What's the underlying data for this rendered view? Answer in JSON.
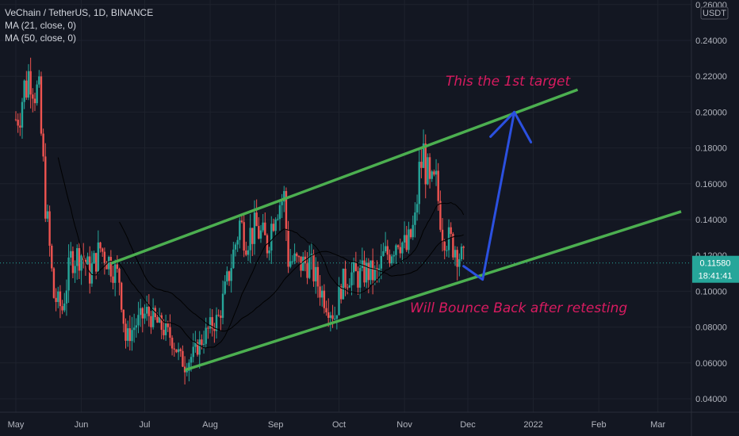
{
  "legend": {
    "symbol_line": "VeChain / TetherUS, 1D, BINANCE",
    "ma21": "MA (21, close, 0)",
    "ma50": "MA (50, close, 0)"
  },
  "price_scale": {
    "currency_badge": "USDT",
    "current_price": "0.11580",
    "countdown": "18:41:41"
  },
  "annotations": {
    "target_text": "This the 1st target",
    "bounce_text": "Will Bounce Back after retesting"
  },
  "colors": {
    "background": "#131722",
    "up": "#26a69a",
    "down": "#ef5350",
    "channel": "#4caf50",
    "arrow": "#2b50e0",
    "annotation": "#d81b60",
    "ma": "#000000",
    "price_badge": "#26a69a"
  },
  "chart_data": {
    "type": "candlestick",
    "title": "VeChain / TetherUS, 1D, BINANCE",
    "y_ticks": [
      "0.04000",
      "0.06000",
      "0.08000",
      "0.10000",
      "0.12000",
      "0.14000",
      "0.16000",
      "0.18000",
      "0.20000",
      "0.22000",
      "0.24000",
      "0.26000"
    ],
    "x_ticks": [
      "May",
      "Jun",
      "Jul",
      "Aug",
      "Sep",
      "Oct",
      "Nov",
      "Dec",
      "2022",
      "Feb",
      "Mar"
    ],
    "ylim": [
      0.035,
      0.26
    ],
    "closes": [
      {
        "date": "May 1",
        "v": 0.196
      },
      {
        "date": "May 8",
        "v": 0.225
      },
      {
        "date": "May 12",
        "v": 0.205
      },
      {
        "date": "May 15",
        "v": 0.15
      },
      {
        "date": "May 19",
        "v": 0.097
      },
      {
        "date": "May 23",
        "v": 0.09
      },
      {
        "date": "May 27",
        "v": 0.118
      },
      {
        "date": "Jun 1",
        "v": 0.121
      },
      {
        "date": "Jun 5",
        "v": 0.11
      },
      {
        "date": "Jun 10",
        "v": 0.124
      },
      {
        "date": "Jun 14",
        "v": 0.117
      },
      {
        "date": "Jun 19",
        "v": 0.107
      },
      {
        "date": "Jun 22",
        "v": 0.073
      },
      {
        "date": "Jun 27",
        "v": 0.082
      },
      {
        "date": "Jul 2",
        "v": 0.088
      },
      {
        "date": "Jul 8",
        "v": 0.081
      },
      {
        "date": "Jul 13",
        "v": 0.075
      },
      {
        "date": "Jul 20",
        "v": 0.058
      },
      {
        "date": "Jul 25",
        "v": 0.067
      },
      {
        "date": "Aug 1",
        "v": 0.08
      },
      {
        "date": "Aug 5",
        "v": 0.085
      },
      {
        "date": "Aug 10",
        "v": 0.11
      },
      {
        "date": "Aug 15",
        "v": 0.138
      },
      {
        "date": "Aug 18",
        "v": 0.13
      },
      {
        "date": "Aug 23",
        "v": 0.135
      },
      {
        "date": "Aug 28",
        "v": 0.126
      },
      {
        "date": "Sep 1",
        "v": 0.148
      },
      {
        "date": "Sep 5",
        "v": 0.152
      },
      {
        "date": "Sep 7",
        "v": 0.118
      },
      {
        "date": "Sep 12",
        "v": 0.115
      },
      {
        "date": "Sep 17",
        "v": 0.116
      },
      {
        "date": "Sep 21",
        "v": 0.104
      },
      {
        "date": "Sep 25",
        "v": 0.094
      },
      {
        "date": "Sep 29",
        "v": 0.086
      },
      {
        "date": "Oct 2",
        "v": 0.103
      },
      {
        "date": "Oct 6",
        "v": 0.11
      },
      {
        "date": "Oct 10",
        "v": 0.108
      },
      {
        "date": "Oct 14",
        "v": 0.111
      },
      {
        "date": "Oct 19",
        "v": 0.108
      },
      {
        "date": "Oct 22",
        "v": 0.119
      },
      {
        "date": "Oct 25",
        "v": 0.122
      },
      {
        "date": "Oct 29",
        "v": 0.131
      },
      {
        "date": "Nov 2",
        "v": 0.123
      },
      {
        "date": "Nov 6",
        "v": 0.138
      },
      {
        "date": "Nov 8",
        "v": 0.166
      },
      {
        "date": "Nov 10",
        "v": 0.177
      },
      {
        "date": "Nov 13",
        "v": 0.156
      },
      {
        "date": "Nov 16",
        "v": 0.159
      },
      {
        "date": "Nov 19",
        "v": 0.135
      },
      {
        "date": "Nov 22",
        "v": 0.128
      },
      {
        "date": "Nov 25",
        "v": 0.125
      },
      {
        "date": "Nov 29",
        "v": 0.116
      }
    ],
    "channel": {
      "upper": [
        {
          "date": "Jun 15",
          "v": 0.1155
        },
        {
          "date": "Jan 22",
          "v": 0.2125
        }
      ],
      "lower": [
        {
          "date": "Jul 20",
          "v": 0.056
        },
        {
          "date": "Mar 12",
          "v": 0.1445
        }
      ]
    },
    "projection": [
      {
        "date": "Nov 29",
        "v": 0.114
      },
      {
        "date": "Dec 8",
        "v": 0.1065
      },
      {
        "date": "Dec 23",
        "v": 0.2
      }
    ]
  }
}
